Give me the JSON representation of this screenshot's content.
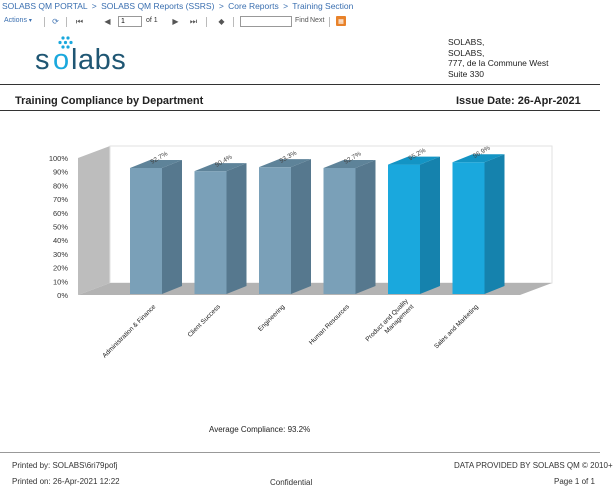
{
  "breadcrumb": [
    "SOLABS QM PORTAL",
    "SOLABS QM Reports (SSRS)",
    "Core Reports",
    "Training Section"
  ],
  "breadcrumb_sep": ">",
  "toolbar": {
    "actions_label": "Actions",
    "page_value": "1",
    "of_label": "of 1",
    "find_label": "Find",
    "next_label": "Next"
  },
  "address": {
    "line1": "SOLABS,",
    "line2": "SOLABS,",
    "line3": "777, de la Commune West",
    "line4": "Suite 330"
  },
  "report": {
    "title": "Training Compliance by Department",
    "issue_date": "Issue Date: 26-Apr-2021"
  },
  "chart_data": {
    "type": "bar",
    "categories": [
      "Administration & Finance",
      "Client Success",
      "Engineering",
      "Human Resources",
      "Product and Quality Management",
      "Sales and Marketing"
    ],
    "category_lines": [
      [
        "Administration & Finance"
      ],
      [
        "Client Success"
      ],
      [
        "Engineering"
      ],
      [
        "Human Resources"
      ],
      [
        "Product and Quality",
        "Management"
      ],
      [
        "Sales and Marketing"
      ]
    ],
    "values": [
      92.7,
      90.4,
      93.3,
      92.7,
      95.2,
      96.9
    ],
    "data_labels": [
      "92.7%",
      "90.4%",
      "93.3%",
      "92.7%",
      "95.2%",
      "96.9%"
    ],
    "y_ticks": [
      "0%",
      "10%",
      "20%",
      "30%",
      "40%",
      "50%",
      "60%",
      "70%",
      "80%",
      "90%",
      "100%"
    ],
    "ylim": [
      0,
      100
    ],
    "colors": [
      "#7aa0b8",
      "#7aa0b8",
      "#7aa0b8",
      "#7aa0b8",
      "#1aa8dd",
      "#1aa8dd"
    ],
    "side_colors": [
      "#56788e",
      "#56788e",
      "#56788e",
      "#56788e",
      "#1582ad",
      "#1582ad"
    ],
    "top_colors": [
      "#5e8399",
      "#5e8399",
      "#5e8399",
      "#5e8399",
      "#1394c4",
      "#1394c4"
    ]
  },
  "average_label": "Average Compliance: 93.2%",
  "footer": {
    "printed_by": "Printed by: SOLABS\\6ri79pofj",
    "printed_on": "Printed on: 26-Apr-2021 12:22",
    "confidential": "Confidential",
    "provided_by": "DATA PROVIDED BY SOLABS QM © 2010+",
    "page": "Page 1 of 1"
  }
}
